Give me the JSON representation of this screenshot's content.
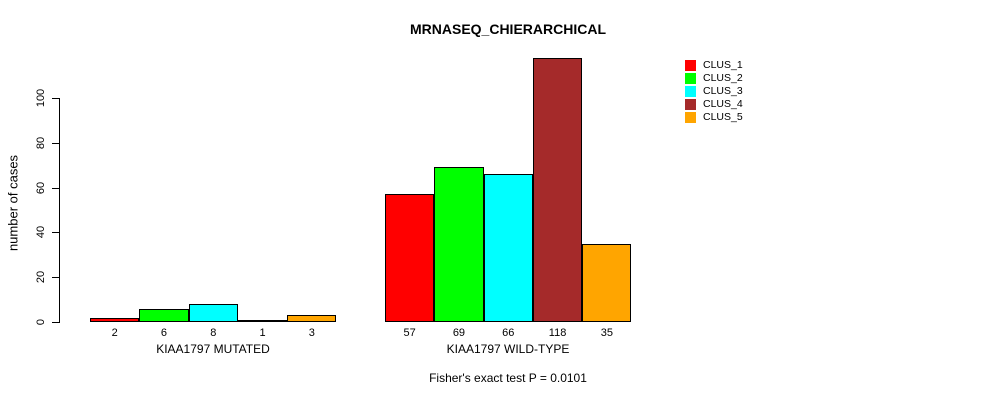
{
  "chart_data": {
    "type": "bar",
    "title": "MRNASEQ_CHIERARCHICAL",
    "ylabel": "number of cases",
    "xlabel": "",
    "ylim": [
      0,
      120
    ],
    "yticks": [
      0,
      20,
      40,
      60,
      80,
      100
    ],
    "grid": false,
    "legend_position": "top-right",
    "categories": [
      "KIAA1797 MUTATED",
      "KIAA1797 WILD-TYPE"
    ],
    "series": [
      {
        "name": "CLUS_1",
        "color": "#FF0000",
        "values": [
          2,
          57
        ]
      },
      {
        "name": "CLUS_2",
        "color": "#00FF00",
        "values": [
          6,
          69
        ]
      },
      {
        "name": "CLUS_3",
        "color": "#00FFFF",
        "values": [
          8,
          66
        ]
      },
      {
        "name": "CLUS_4",
        "color": "#A52A2A",
        "values": [
          1,
          118
        ]
      },
      {
        "name": "CLUS_5",
        "color": "#FFA500",
        "values": [
          3,
          35
        ]
      }
    ],
    "bar_value_labels": [
      [
        2,
        6,
        8,
        1,
        3
      ],
      [
        57,
        69,
        66,
        118,
        35
      ]
    ],
    "footnote": "Fisher's exact test P = 0.0101"
  }
}
